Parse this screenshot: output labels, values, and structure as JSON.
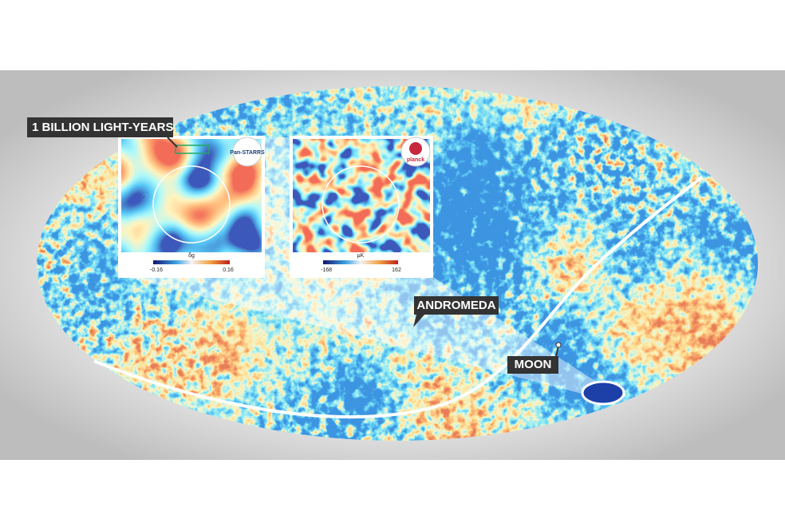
{
  "labels": {
    "scale": "1 BILLION LIGHT-YEARS",
    "andromeda": "ANDROMEDA",
    "moon": "MOON"
  },
  "panels": [
    {
      "logo": "Pan-STARRS",
      "colorbar": {
        "min": "-0.16",
        "max": "0.16",
        "unit": "δg"
      }
    },
    {
      "logo": "planck",
      "colorbar": {
        "min": "-168",
        "max": "162",
        "unit": "μK"
      }
    }
  ]
}
